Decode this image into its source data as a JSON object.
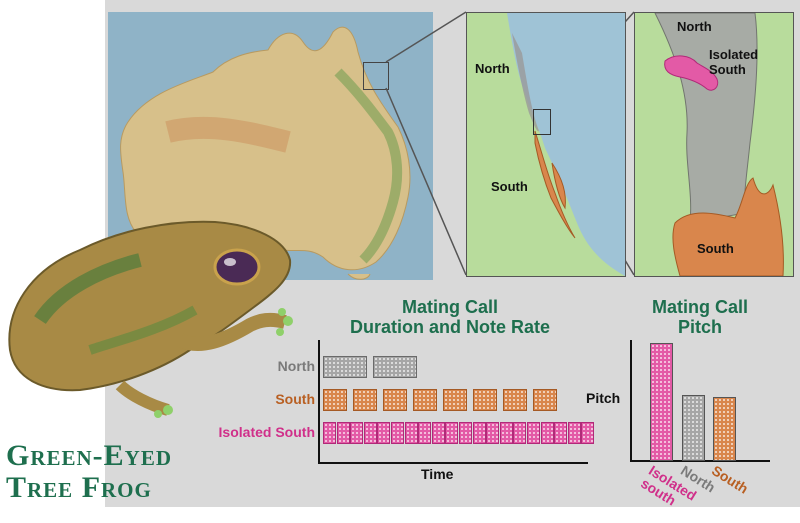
{
  "maps": {
    "inset1": {
      "north_label": "North",
      "south_label": "South"
    },
    "inset2": {
      "north_label": "North",
      "isolated_label": "Isolated\nSouth",
      "south_label": "South"
    }
  },
  "duration_chart": {
    "title_line1": "Mating Call",
    "title_line2": "Duration and Note Rate",
    "xlabel": "Time",
    "series": [
      {
        "name": "North",
        "color": "#a6a6a6",
        "text_color": "#7a7a7a",
        "note_count": 2
      },
      {
        "name": "South",
        "color": "#d9864c",
        "text_color": "#b85f22",
        "note_count": 8
      },
      {
        "name": "Isolated South",
        "color": "#e35aa6",
        "text_color": "#d0308a",
        "note_count": 20
      }
    ]
  },
  "chart_data": {
    "type": "bar",
    "title": "Mating Call Pitch",
    "ylabel": "Pitch",
    "categories": [
      "Isolated south",
      "North",
      "South"
    ],
    "values": [
      1.0,
      0.55,
      0.53
    ],
    "colors": [
      "#e35aa6",
      "#a6a6a6",
      "#d9864c"
    ],
    "label_colors": [
      "#d0308a",
      "#7a7a7a",
      "#b85f22"
    ],
    "ylim": [
      0,
      1.05
    ],
    "grid": false
  },
  "pitch_chart": {
    "title_line1": "Mating Call",
    "title_line2": "Pitch"
  },
  "frog": {
    "title_line1": "Green-Eyed",
    "title_line2": "Tree Frog"
  }
}
